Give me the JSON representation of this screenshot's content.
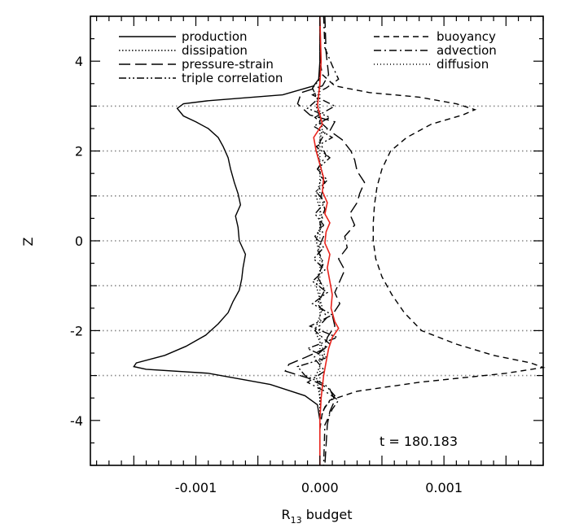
{
  "chart_data": {
    "type": "line",
    "xlabel": "R",
    "xlabel_sub": "13",
    "xlabel_suffix": " budget",
    "ylabel": "Z",
    "xlim": [
      -0.00185,
      0.0018
    ],
    "ylim": [
      -5,
      5
    ],
    "xticks": [
      -0.001,
      0.0,
      0.001
    ],
    "xtick_labels": [
      "-0.001",
      "0.000",
      "0.001"
    ],
    "yticks": [
      -4,
      -2,
      0,
      2,
      4
    ],
    "ytick_labels": [
      "-4",
      "-2",
      "0",
      "2",
      "4"
    ],
    "reference_lines_z": [
      -3,
      -2,
      -1,
      0,
      1,
      2,
      3
    ],
    "annotation": "t = 180.183",
    "legend_left": [
      "production",
      "dissipation",
      "pressure-strain",
      "triple correlation"
    ],
    "legend_right": [
      "buoyancy",
      "advection",
      "diffusion"
    ],
    "series": [
      {
        "name": "production",
        "style": "solid",
        "color": "#000000",
        "points": [
          [
            0.0,
            5.0
          ],
          [
            0.0,
            4.0
          ],
          [
            -1e-05,
            3.6
          ],
          [
            -5e-05,
            3.45
          ],
          [
            -0.0003,
            3.25
          ],
          [
            -0.0009,
            3.12
          ],
          [
            -0.0011,
            3.05
          ],
          [
            -0.00115,
            2.95
          ],
          [
            -0.0011,
            2.78
          ],
          [
            -0.001,
            2.65
          ],
          [
            -0.0009,
            2.5
          ],
          [
            -0.00082,
            2.3
          ],
          [
            -0.00078,
            2.1
          ],
          [
            -0.00074,
            1.85
          ],
          [
            -0.00072,
            1.6
          ],
          [
            -0.00069,
            1.3
          ],
          [
            -0.00066,
            1.05
          ],
          [
            -0.00064,
            0.8
          ],
          [
            -0.00068,
            0.55
          ],
          [
            -0.00066,
            0.3
          ],
          [
            -0.00065,
            0.0
          ],
          [
            -0.0006,
            -0.3
          ],
          [
            -0.00062,
            -0.6
          ],
          [
            -0.00063,
            -0.85
          ],
          [
            -0.00065,
            -1.1
          ],
          [
            -0.0007,
            -1.35
          ],
          [
            -0.00074,
            -1.6
          ],
          [
            -0.00082,
            -1.85
          ],
          [
            -0.00092,
            -2.1
          ],
          [
            -0.00108,
            -2.35
          ],
          [
            -0.00125,
            -2.55
          ],
          [
            -0.00148,
            -2.72
          ],
          [
            -0.0015,
            -2.8
          ],
          [
            -0.0014,
            -2.86
          ],
          [
            -0.0009,
            -2.95
          ],
          [
            -0.0004,
            -3.2
          ],
          [
            -0.00012,
            -3.45
          ],
          [
            -2e-05,
            -3.65
          ],
          [
            0.0,
            -4.0
          ],
          [
            0.0,
            -5.0
          ]
        ]
      },
      {
        "name": "dissipation",
        "style": "dotted",
        "color": "#000000",
        "points": [
          [
            0.0,
            5.0
          ],
          [
            0.0,
            3.5
          ],
          [
            -3e-05,
            3.0
          ],
          [
            2e-05,
            2.5
          ],
          [
            -2e-05,
            2.0
          ],
          [
            2e-05,
            1.5
          ],
          [
            -3e-05,
            1.0
          ],
          [
            2e-05,
            0.5
          ],
          [
            -3e-05,
            0.0
          ],
          [
            2e-05,
            -0.5
          ],
          [
            -3e-05,
            -1.0
          ],
          [
            2e-05,
            -1.5
          ],
          [
            -4e-05,
            -2.0
          ],
          [
            4e-05,
            -2.5
          ],
          [
            -3e-05,
            -3.0
          ],
          [
            0.0,
            -3.5
          ],
          [
            0.0,
            -5.0
          ]
        ]
      },
      {
        "name": "pressure-strain",
        "style": "longdash",
        "color": "#000000",
        "points": [
          [
            4e-05,
            5.0
          ],
          [
            5e-05,
            4.2
          ],
          [
            7e-05,
            3.7
          ],
          [
            2e-05,
            3.45
          ],
          [
            -0.00015,
            3.3
          ],
          [
            -0.00018,
            3.05
          ],
          [
            -8e-05,
            2.8
          ],
          [
            0.00012,
            2.65
          ],
          [
            8e-05,
            2.45
          ],
          [
            0.00018,
            2.25
          ],
          [
            0.00025,
            2.0
          ],
          [
            0.00028,
            1.8
          ],
          [
            0.0003,
            1.55
          ],
          [
            0.00036,
            1.3
          ],
          [
            0.00032,
            1.05
          ],
          [
            0.0003,
            0.85
          ],
          [
            0.00024,
            0.6
          ],
          [
            0.00028,
            0.35
          ],
          [
            0.0002,
            0.1
          ],
          [
            0.00022,
            -0.15
          ],
          [
            0.00015,
            -0.4
          ],
          [
            0.0002,
            -0.65
          ],
          [
            0.00016,
            -0.9
          ],
          [
            0.00012,
            -1.15
          ],
          [
            0.00016,
            -1.4
          ],
          [
            0.0001,
            -1.65
          ],
          [
            0.00012,
            -1.9
          ],
          [
            6e-05,
            -2.15
          ],
          [
            4e-05,
            -2.4
          ],
          [
            -0.00012,
            -2.6
          ],
          [
            -0.00025,
            -2.75
          ],
          [
            -0.00028,
            -2.9
          ],
          [
            -0.0001,
            -3.05
          ],
          [
            8e-05,
            -3.3
          ],
          [
            0.00012,
            -3.55
          ],
          [
            8e-05,
            -3.8
          ],
          [
            6e-05,
            -4.1
          ],
          [
            4e-05,
            -5.0
          ]
        ]
      },
      {
        "name": "triple correlation",
        "style": "dashdotdot",
        "color": "#000000",
        "points": [
          [
            0.0,
            5.0
          ],
          [
            0.0,
            3.6
          ],
          [
            -6e-05,
            3.4
          ],
          [
            -2e-05,
            3.15
          ],
          [
            -0.0001,
            2.95
          ],
          [
            8e-05,
            2.75
          ],
          [
            -5e-05,
            2.55
          ],
          [
            0.0001,
            2.3
          ],
          [
            -3e-05,
            2.1
          ],
          [
            8e-05,
            1.85
          ],
          [
            -2e-05,
            1.6
          ],
          [
            6e-05,
            1.35
          ],
          [
            -3e-05,
            1.1
          ],
          [
            4e-05,
            0.85
          ],
          [
            -4e-05,
            0.6
          ],
          [
            3e-05,
            0.35
          ],
          [
            -4e-05,
            0.1
          ],
          [
            3e-05,
            -0.15
          ],
          [
            -5e-05,
            -0.4
          ],
          [
            4e-05,
            -0.65
          ],
          [
            -6e-05,
            -0.9
          ],
          [
            6e-05,
            -1.15
          ],
          [
            -6e-05,
            -1.4
          ],
          [
            0.0001,
            -1.65
          ],
          [
            -8e-05,
            -1.9
          ],
          [
            0.00014,
            -2.15
          ],
          [
            -0.0001,
            -2.4
          ],
          [
            6e-05,
            -2.6
          ],
          [
            -0.00018,
            -2.8
          ],
          [
            -0.00012,
            -3.0
          ],
          [
            4e-05,
            -3.2
          ],
          [
            0.00012,
            -3.45
          ],
          [
            4e-05,
            -3.7
          ],
          [
            0.0,
            -4.0
          ],
          [
            0.0,
            -5.0
          ]
        ]
      },
      {
        "name": "buoyancy",
        "style": "dashed",
        "color": "#000000",
        "points": [
          [
            0.0,
            5.0
          ],
          [
            0.0,
            4.0
          ],
          [
            2e-05,
            3.7
          ],
          [
            0.00012,
            3.45
          ],
          [
            0.0004,
            3.3
          ],
          [
            0.0008,
            3.2
          ],
          [
            0.0011,
            3.05
          ],
          [
            0.00125,
            2.92
          ],
          [
            0.00115,
            2.8
          ],
          [
            0.0009,
            2.6
          ],
          [
            0.0007,
            2.3
          ],
          [
            0.00057,
            2.0
          ],
          [
            0.0005,
            1.6
          ],
          [
            0.00046,
            1.2
          ],
          [
            0.00044,
            0.8
          ],
          [
            0.00043,
            0.4
          ],
          [
            0.00043,
            0.0
          ],
          [
            0.00045,
            -0.4
          ],
          [
            0.0005,
            -0.8
          ],
          [
            0.00058,
            -1.2
          ],
          [
            0.00068,
            -1.6
          ],
          [
            0.00082,
            -2.0
          ],
          [
            0.0011,
            -2.3
          ],
          [
            0.0014,
            -2.55
          ],
          [
            0.0017,
            -2.72
          ],
          [
            0.0018,
            -2.82
          ],
          [
            0.0015,
            -2.95
          ],
          [
            0.0008,
            -3.15
          ],
          [
            0.0003,
            -3.35
          ],
          [
            8e-05,
            -3.55
          ],
          [
            2e-05,
            -3.8
          ],
          [
            0.0,
            -4.2
          ],
          [
            0.0,
            -5.0
          ]
        ]
      },
      {
        "name": "advection",
        "style": "dashdot",
        "color": "#000000",
        "points": [
          [
            3e-05,
            5.0
          ],
          [
            4e-05,
            4.3
          ],
          [
            0.0001,
            3.9
          ],
          [
            0.00015,
            3.6
          ],
          [
            5e-05,
            3.4
          ],
          [
            -6e-05,
            3.25
          ],
          [
            0.00012,
            3.0
          ],
          [
            -4e-05,
            2.75
          ],
          [
            6e-05,
            2.5
          ],
          [
            0.0,
            2.2
          ],
          [
            5e-05,
            1.9
          ],
          [
            -2e-05,
            1.6
          ],
          [
            4e-05,
            1.3
          ],
          [
            1e-05,
            1.0
          ],
          [
            4e-05,
            0.7
          ],
          [
            0.0,
            0.4
          ],
          [
            3e-05,
            0.1
          ],
          [
            -2e-05,
            -0.2
          ],
          [
            3e-05,
            -0.5
          ],
          [
            -2e-05,
            -0.8
          ],
          [
            4e-05,
            -1.1
          ],
          [
            -2e-05,
            -1.4
          ],
          [
            6e-05,
            -1.7
          ],
          [
            -4e-05,
            -2.0
          ],
          [
            8e-05,
            -2.3
          ],
          [
            -5e-05,
            -2.6
          ],
          [
            4e-05,
            -2.9
          ],
          [
            -0.0001,
            -3.15
          ],
          [
            4e-05,
            -3.35
          ],
          [
            0.00015,
            -3.55
          ],
          [
            0.0001,
            -3.75
          ],
          [
            4e-05,
            -4.1
          ],
          [
            3e-05,
            -5.0
          ]
        ]
      },
      {
        "name": "diffusion",
        "style": "finedotted",
        "color": "#000000",
        "points": [
          [
            0.0,
            5.0
          ],
          [
            0.0,
            -5.0
          ]
        ]
      },
      {
        "name": "",
        "style": "solid",
        "color": "#e8231c",
        "points": [
          [
            0.0,
            5.0
          ],
          [
            1e-05,
            4.0
          ],
          [
            0.0,
            3.5
          ],
          [
            -2e-05,
            3.0
          ],
          [
            2e-05,
            2.6
          ],
          [
            -5e-05,
            2.3
          ],
          [
            -3e-05,
            2.0
          ],
          [
            0.0,
            1.7
          ],
          [
            3e-05,
            1.4
          ],
          [
            2e-05,
            1.1
          ],
          [
            6e-05,
            0.85
          ],
          [
            4e-05,
            0.6
          ],
          [
            8e-05,
            0.4
          ],
          [
            5e-05,
            0.2
          ],
          [
            4e-05,
            -0.05
          ],
          [
            8e-05,
            -0.3
          ],
          [
            6e-05,
            -0.6
          ],
          [
            8e-05,
            -0.9
          ],
          [
            0.0001,
            -1.2
          ],
          [
            9e-05,
            -1.5
          ],
          [
            0.00012,
            -1.8
          ],
          [
            0.00015,
            -1.95
          ],
          [
            0.0001,
            -2.15
          ],
          [
            7e-05,
            -2.4
          ],
          [
            5e-05,
            -2.7
          ],
          [
            3e-05,
            -3.0
          ],
          [
            1e-05,
            -3.5
          ],
          [
            0.0,
            -4.0
          ],
          [
            0.0,
            -5.0
          ]
        ]
      }
    ]
  }
}
